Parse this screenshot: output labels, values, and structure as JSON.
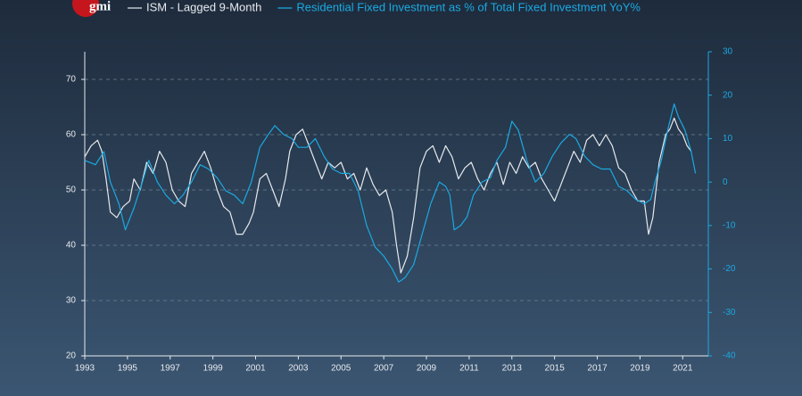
{
  "brand": "gmi",
  "chart_data": {
    "type": "line",
    "xlim": [
      1993,
      2022.2
    ],
    "xticks": [
      1993,
      1995,
      1997,
      1999,
      2001,
      2003,
      2005,
      2007,
      2009,
      2011,
      2013,
      2015,
      2017,
      2019,
      2021
    ],
    "ylim": [
      20,
      75
    ],
    "yticks": [
      20,
      30,
      40,
      50,
      60,
      70
    ],
    "y2lim": [
      -40,
      30
    ],
    "y2ticks": [
      -40,
      -30,
      -20,
      -10,
      0,
      10,
      20,
      30
    ],
    "grid": true,
    "series": [
      {
        "name": "ISM - Lagged 9-Month",
        "color": "#e6e9ee",
        "x": [
          1993.0,
          1993.3,
          1993.6,
          1993.8,
          1994.0,
          1994.2,
          1994.5,
          1994.8,
          1995.1,
          1995.3,
          1995.6,
          1995.9,
          1996.2,
          1996.5,
          1996.8,
          1997.1,
          1997.4,
          1997.7,
          1998.0,
          1998.3,
          1998.6,
          1998.9,
          1999.2,
          1999.5,
          1999.8,
          2000.1,
          2000.4,
          2000.7,
          2000.9,
          2001.2,
          2001.5,
          2001.8,
          2002.1,
          2002.4,
          2002.6,
          2002.9,
          2003.2,
          2003.5,
          2003.8,
          2004.1,
          2004.4,
          2004.7,
          2005.0,
          2005.3,
          2005.6,
          2005.9,
          2006.2,
          2006.5,
          2006.8,
          2007.1,
          2007.4,
          2007.6,
          2007.8,
          2008.1,
          2008.4,
          2008.7,
          2009.0,
          2009.3,
          2009.6,
          2009.9,
          2010.2,
          2010.5,
          2010.8,
          2011.1,
          2011.4,
          2011.7,
          2012.0,
          2012.3,
          2012.6,
          2012.9,
          2013.2,
          2013.5,
          2013.8,
          2014.1,
          2014.4,
          2014.7,
          2015.0,
          2015.3,
          2015.6,
          2015.9,
          2016.2,
          2016.5,
          2016.8,
          2017.1,
          2017.4,
          2017.7,
          2018.0,
          2018.3,
          2018.6,
          2018.9,
          2019.2,
          2019.4,
          2019.6,
          2019.9,
          2020.2,
          2020.4,
          2020.6,
          2020.8,
          2021.0,
          2021.2,
          2021.4
        ],
        "values": [
          56,
          58,
          59,
          57,
          52,
          46,
          45,
          47,
          48,
          52,
          50,
          55,
          53,
          57,
          55,
          50,
          48,
          47,
          53,
          55,
          57,
          54,
          50,
          47,
          46,
          42,
          42,
          44,
          46,
          52,
          53,
          50,
          47,
          52,
          57,
          60,
          61,
          58,
          55,
          52,
          55,
          54,
          55,
          52,
          53,
          50,
          54,
          51,
          49,
          50,
          46,
          40,
          35,
          38,
          45,
          54,
          57,
          58,
          55,
          58,
          56,
          52,
          54,
          55,
          52,
          50,
          53,
          55,
          51,
          55,
          53,
          56,
          54,
          55,
          52,
          50,
          48,
          51,
          54,
          57,
          55,
          59,
          60,
          58,
          60,
          58,
          54,
          53,
          50,
          48,
          48,
          42,
          45,
          55,
          60,
          61,
          63,
          61,
          60,
          58,
          57
        ]
      },
      {
        "name": "Residential Fixed Investment as % of Total Fixed Investment YoY%",
        "color": "#1ba9e1",
        "axis": "y2",
        "x": [
          1993.0,
          1993.5,
          1993.9,
          1994.2,
          1994.6,
          1994.9,
          1995.3,
          1995.7,
          1996.0,
          1996.4,
          1996.8,
          1997.2,
          1997.6,
          1998.0,
          1998.4,
          1998.8,
          1999.2,
          1999.6,
          2000.0,
          2000.4,
          2000.8,
          2001.2,
          2001.6,
          2001.9,
          2002.3,
          2002.7,
          2003.0,
          2003.4,
          2003.8,
          2004.2,
          2004.6,
          2005.0,
          2005.4,
          2005.8,
          2006.2,
          2006.6,
          2007.0,
          2007.4,
          2007.7,
          2008.0,
          2008.4,
          2008.8,
          2009.2,
          2009.6,
          2009.9,
          2010.1,
          2010.3,
          2010.6,
          2010.9,
          2011.2,
          2011.6,
          2012.0,
          2012.3,
          2012.7,
          2013.0,
          2013.3,
          2013.7,
          2014.1,
          2014.5,
          2014.9,
          2015.3,
          2015.7,
          2016.0,
          2016.4,
          2016.8,
          2017.2,
          2017.6,
          2018.0,
          2018.4,
          2018.8,
          2019.2,
          2019.5,
          2019.7,
          2020.0,
          2020.3,
          2020.6,
          2020.8,
          2021.1,
          2021.4,
          2021.6
        ],
        "values": [
          5,
          4,
          7,
          0,
          -5,
          -11,
          -6,
          0,
          5,
          0,
          -3,
          -5,
          -3,
          0,
          4,
          3,
          1,
          -2,
          -3,
          -5,
          0,
          8,
          11,
          13,
          11,
          10,
          8,
          8,
          10,
          6,
          3,
          2,
          2,
          -2,
          -10,
          -15,
          -17,
          -20,
          -23,
          -22,
          -19,
          -12,
          -5,
          0,
          -1,
          -3,
          -11,
          -10,
          -8,
          -3,
          0,
          1,
          5,
          8,
          14,
          12,
          5,
          0,
          2,
          6,
          9,
          11,
          10,
          6,
          4,
          3,
          3,
          -1,
          -2,
          -4,
          -5,
          -4,
          0,
          5,
          12,
          18,
          15,
          12,
          7,
          2
        ]
      }
    ]
  }
}
